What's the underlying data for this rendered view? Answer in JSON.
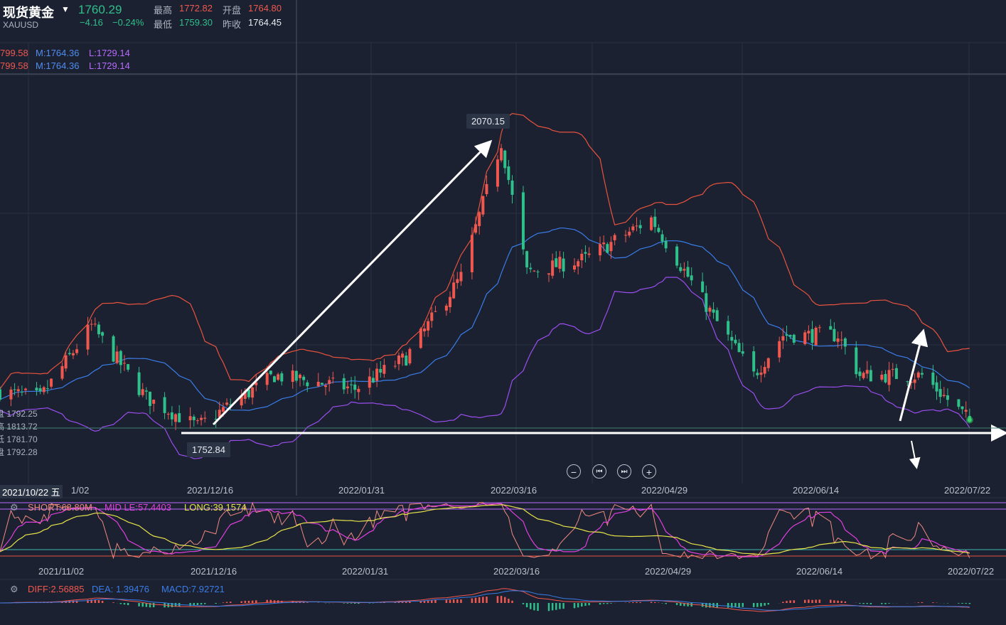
{
  "header": {
    "name": "现货黄金",
    "code": "XAUUSD",
    "price": "1760.29",
    "change": "−4.16",
    "change_pct": "−0.24%",
    "high_label": "最高",
    "high_value": "1772.82",
    "open_label": "开盘",
    "open_value": "1764.80",
    "low_label": "最低",
    "low_value": "1759.30",
    "prev_label": "昨收",
    "prev_value": "1764.45"
  },
  "bands_legend": [
    {
      "upper": "799.58",
      "mid": "M:1764.36",
      "low": "L:1729.14"
    },
    {
      "upper": "799.58",
      "mid": "M:1764.36",
      "low": "L:1729.14"
    }
  ],
  "ohlc_overlay": [
    "盘 1792.25",
    "高 1813.72",
    "低 1781.70",
    "盘 1792.28"
  ],
  "annotations": {
    "peak": "2070.15",
    "trough": "1752.84"
  },
  "cursor_date": "2021/10/22 五",
  "main_dates": [
    "1/02",
    "2021/12/16",
    "2022/01/31",
    "2022/03/16",
    "2022/04/29",
    "2022/06/14",
    "2022/07/22"
  ],
  "kd_dates": [
    "2021/11/02",
    "2021/12/16",
    "2022/01/31",
    "2022/03/16",
    "2022/04/29",
    "2022/06/14",
    "2022/07/22"
  ],
  "kd_legend": {
    "short": "SHORT:68.80M",
    "mid": "MID LE:57.4403",
    "long": "LONG:39.1574"
  },
  "macd_legend": {
    "diff": "DIFF:2.56885",
    "dea": "DEA: 1.39476",
    "macd": "MACD:7.92721"
  },
  "colors": {
    "up": "#f0584f",
    "down": "#2fbf8a",
    "upper_band": "#e8533f",
    "mid_band": "#3a7de8",
    "lower_band": "#9b4ef0",
    "bg": "#1b2130",
    "short": "#f08a80",
    "mid": "#e23fe0",
    "long": "#e7e34a",
    "dea": "#3a7de8"
  },
  "icons": {
    "zoom_out": "minus-icon",
    "back": "skip-back-icon",
    "forward": "skip-forward-icon",
    "zoom_in": "plus-icon",
    "settings": "gear-icon"
  },
  "chart_data": {
    "type": "candlestick",
    "title": "现货黄金",
    "x_range": [
      "2021-10-22",
      "2022-07-22"
    ],
    "y_range": [
      1730,
      2080
    ],
    "anchors": [
      {
        "date": "2021-10-22",
        "close": 1792
      },
      {
        "date": "2021-11-02",
        "close": 1785
      },
      {
        "date": "2021-11-16",
        "close": 1865
      },
      {
        "date": "2021-12-01",
        "close": 1785
      },
      {
        "date": "2021-12-15",
        "close": 1753
      },
      {
        "date": "2022-01-05",
        "close": 1810
      },
      {
        "date": "2022-01-27",
        "close": 1795
      },
      {
        "date": "2022-02-10",
        "close": 1830
      },
      {
        "date": "2022-02-25",
        "close": 1920
      },
      {
        "date": "2022-03-08",
        "close": 2070
      },
      {
        "date": "2022-03-15",
        "close": 1925
      },
      {
        "date": "2022-03-31",
        "close": 1940
      },
      {
        "date": "2022-04-18",
        "close": 1985
      },
      {
        "date": "2022-05-05",
        "close": 1875
      },
      {
        "date": "2022-05-16",
        "close": 1810
      },
      {
        "date": "2022-05-24",
        "close": 1855
      },
      {
        "date": "2022-06-08",
        "close": 1855
      },
      {
        "date": "2022-06-14",
        "close": 1810
      },
      {
        "date": "2022-07-01",
        "close": 1810
      },
      {
        "date": "2022-07-14",
        "close": 1760
      }
    ],
    "bollinger_last": {
      "mid": 1764.36,
      "lower": 1729.14
    }
  }
}
